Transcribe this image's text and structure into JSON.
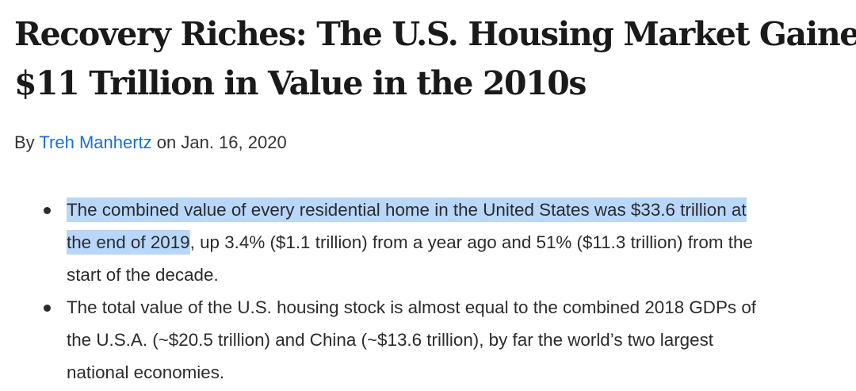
{
  "article": {
    "title_line1": "Recovery Riches: The U.S. Housing Market Gained",
    "title_line2": "$11 Trillion in Value in the 2010s",
    "byline": {
      "prefix": "By",
      "author": "Treh Manhertz",
      "date_text": "on Jan. 16, 2020"
    },
    "bullets": [
      {
        "highlighted_row1": "The combined value of every residential home in the United States was $33.6 trillion at",
        "highlighted_row2": "the end of 2019",
        "rest_row2": ", up 3.4% ($1.1 trillion) from a year ago and 51% ($11.3 trillion) from the",
        "row3": "start of the decade."
      },
      {
        "row1": "The total value of the U.S. housing stock is almost equal to the combined 2018 GDPs of",
        "row2": "the U.S.A. (~$20.5 trillion) and China (~$13.6 trillion), by far the world’s two largest",
        "row3": "national economies."
      }
    ]
  },
  "colors": {
    "author_link": "#1a6fd1",
    "selection_highlight": "#b9d7fb"
  }
}
